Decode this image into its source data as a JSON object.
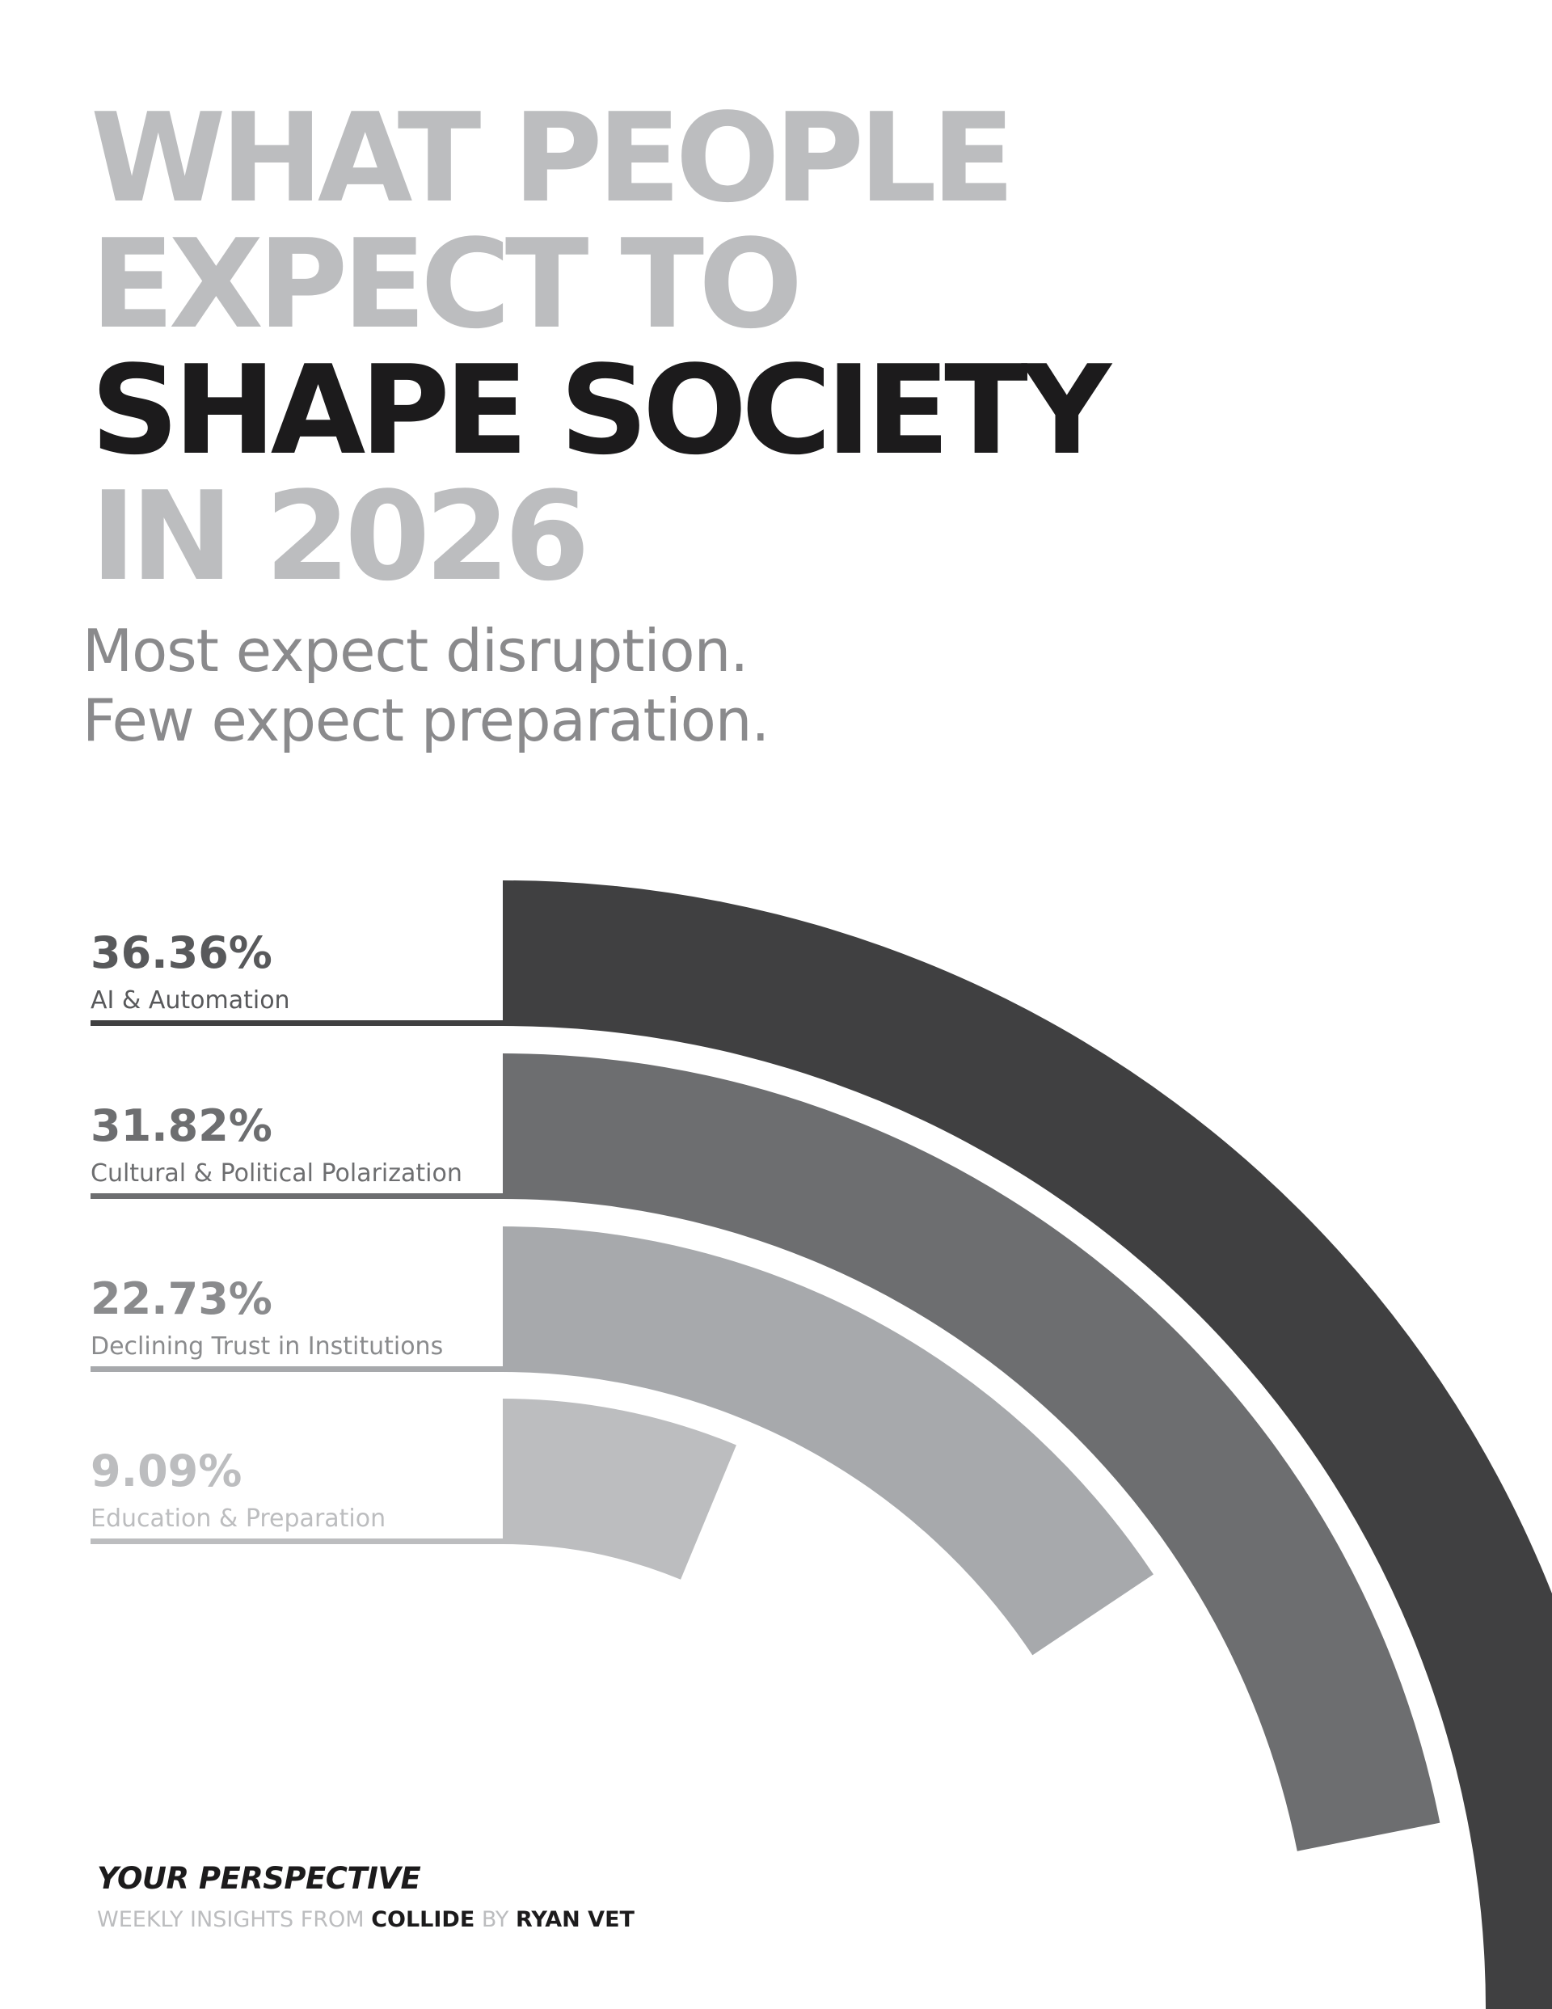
{
  "headline": {
    "line1": "WHAT PEOPLE",
    "line2": "EXPECT TO",
    "line3": "SHAPE SOCIETY",
    "line4": "IN 2026"
  },
  "subtitle": {
    "line1": "Most expect disruption.",
    "line2": "Few expect preparation."
  },
  "colors": {
    "headline_light": "#bcbdbf",
    "headline_dark": "#1c1b1c",
    "subtitle": "#8a8a8c"
  },
  "chart_data": {
    "type": "radial-bar",
    "title": "",
    "unit": "%",
    "categories": [
      "AI & Automation",
      "Cultural & Political Polarization",
      "Declining Trust in Institutions",
      "Education & Preparation"
    ],
    "values": [
      36.36,
      31.82,
      22.73,
      9.09
    ],
    "value_labels": [
      "36.36%",
      "31.82%",
      "22.73%",
      "9.09%"
    ],
    "max_value": 36.36,
    "colors": [
      "#404041",
      "#6d6e70",
      "#a7a9ac",
      "#bcbdbf"
    ],
    "label_colors": [
      "#58595b",
      "#6d6e70",
      "#8a8b8d",
      "#bcbdbf"
    ]
  },
  "footer": {
    "title": "YOUR PERSPECTIVE",
    "prefix": "WEEKLY INSIGHTS FROM ",
    "brand": "COLLIDE",
    "by": " BY ",
    "author": "RYAN VET"
  }
}
